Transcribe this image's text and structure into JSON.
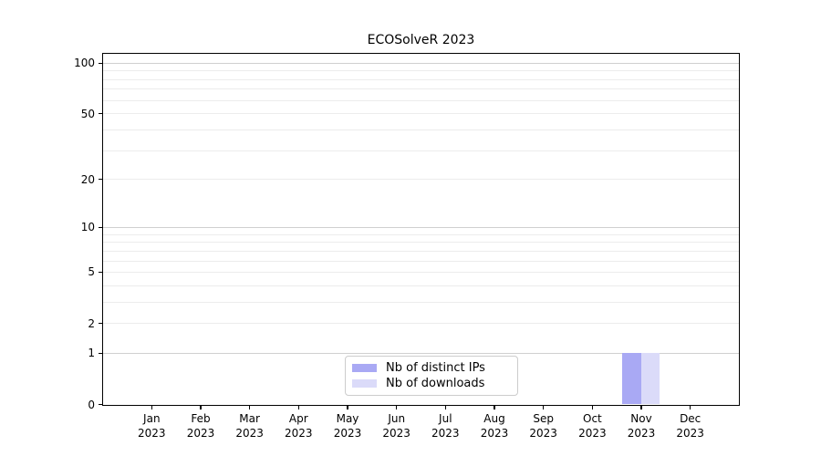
{
  "title": "ECOSolveR 2023",
  "chart_data": {
    "type": "bar",
    "title": "ECOSolveR 2023",
    "categories": [
      "Jan",
      "Feb",
      "Mar",
      "Apr",
      "May",
      "Jun",
      "Jul",
      "Aug",
      "Sep",
      "Oct",
      "Nov",
      "Dec"
    ],
    "year_label": "2023",
    "x_tick_labels": [
      "Jan 2023",
      "Feb 2023",
      "Mar 2023",
      "Apr 2023",
      "May 2023",
      "Jun 2023",
      "Jul 2023",
      "Aug 2023",
      "Sep 2023",
      "Oct 2023",
      "Nov 2023",
      "Dec 2023"
    ],
    "series": [
      {
        "name": "Nb of distinct IPs",
        "color": "#a9a9f4",
        "values": [
          0,
          0,
          0,
          0,
          0,
          0,
          0,
          0,
          0,
          0,
          1,
          0
        ]
      },
      {
        "name": "Nb of downloads",
        "color": "#dbdbf9",
        "values": [
          0,
          0,
          0,
          0,
          0,
          0,
          0,
          0,
          0,
          0,
          1,
          0
        ]
      }
    ],
    "y_scale": "log1p",
    "y_ticks": [
      0,
      1,
      2,
      5,
      10,
      20,
      50,
      100
    ],
    "y_major_grid": [
      1,
      10,
      100
    ],
    "y_minor_grid": [
      2,
      3,
      4,
      5,
      6,
      7,
      8,
      9,
      20,
      30,
      40,
      50,
      60,
      70,
      80,
      90
    ],
    "ylim": [
      0,
      113
    ],
    "grid": true,
    "legend": {
      "position": "lower center",
      "entries": [
        "Nb of distinct IPs",
        "Nb of downloads"
      ]
    },
    "colors": {
      "major_grid": "#d0d0d0",
      "minor_grid": "#ececec",
      "axis": "#000000",
      "background": "#ffffff"
    }
  }
}
